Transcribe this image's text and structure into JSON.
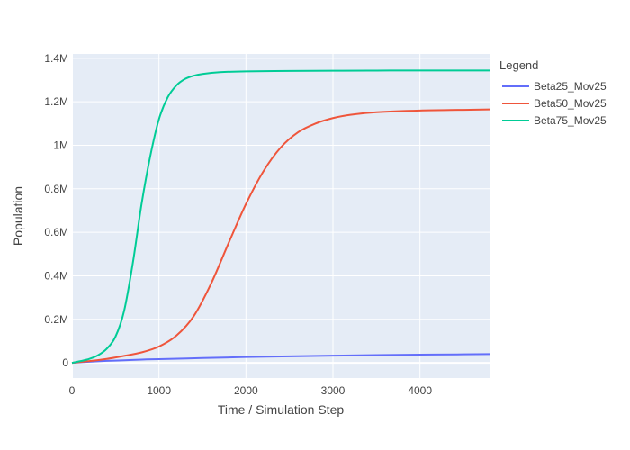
{
  "chart_data": {
    "type": "line",
    "title": "",
    "xlabel": "Time / Simulation Step",
    "ylabel": "Population",
    "xlim": [
      0,
      4800
    ],
    "ylim": [
      -70000,
      1420000
    ],
    "x_ticks": [
      {
        "value": 0,
        "label": "0"
      },
      {
        "value": 1000,
        "label": "1000"
      },
      {
        "value": 2000,
        "label": "2000"
      },
      {
        "value": 3000,
        "label": "3000"
      },
      {
        "value": 4000,
        "label": "4000"
      }
    ],
    "y_ticks": [
      {
        "value": 0,
        "label": "0"
      },
      {
        "value": 200000,
        "label": "0.2M"
      },
      {
        "value": 400000,
        "label": "0.4M"
      },
      {
        "value": 600000,
        "label": "0.6M"
      },
      {
        "value": 800000,
        "label": "0.8M"
      },
      {
        "value": 1000000,
        "label": "1M"
      },
      {
        "value": 1200000,
        "label": "1.2M"
      },
      {
        "value": 1400000,
        "label": "1.4M"
      }
    ],
    "grid": true,
    "legend": {
      "title": "Legend",
      "position": "right"
    },
    "series": [
      {
        "name": "Beta25_Mov25",
        "color": "#636efa",
        "x": [
          0,
          200,
          400,
          600,
          800,
          1000,
          1500,
          2000,
          2500,
          3000,
          3500,
          4000,
          4500,
          4800
        ],
        "y": [
          0,
          5000,
          9000,
          12000,
          15000,
          17000,
          22000,
          26500,
          30000,
          33000,
          35500,
          37500,
          39000,
          40000
        ]
      },
      {
        "name": "Beta50_Mov25",
        "color": "#ef553b",
        "x": [
          0,
          200,
          400,
          600,
          800,
          1000,
          1200,
          1400,
          1600,
          1800,
          2000,
          2200,
          2400,
          2600,
          2800,
          3000,
          3200,
          3500,
          4000,
          4500,
          4800
        ],
        "y": [
          0,
          8000,
          18000,
          32000,
          48000,
          75000,
          125000,
          215000,
          365000,
          550000,
          730000,
          880000,
          990000,
          1060000,
          1100000,
          1125000,
          1140000,
          1152000,
          1160000,
          1163000,
          1165000
        ]
      },
      {
        "name": "Beta75_Mov25",
        "color": "#00cc96",
        "x": [
          0,
          100,
          200,
          300,
          400,
          500,
          600,
          700,
          800,
          900,
          1000,
          1100,
          1200,
          1300,
          1400,
          1500,
          1700,
          2000,
          2500,
          3000,
          3500,
          4000,
          4800
        ],
        "y": [
          0,
          8000,
          18000,
          35000,
          65000,
          120000,
          240000,
          460000,
          730000,
          950000,
          1120000,
          1220000,
          1275000,
          1305000,
          1320000,
          1328000,
          1336000,
          1340000,
          1342000,
          1343000,
          1343500,
          1344000,
          1344000
        ]
      }
    ]
  }
}
